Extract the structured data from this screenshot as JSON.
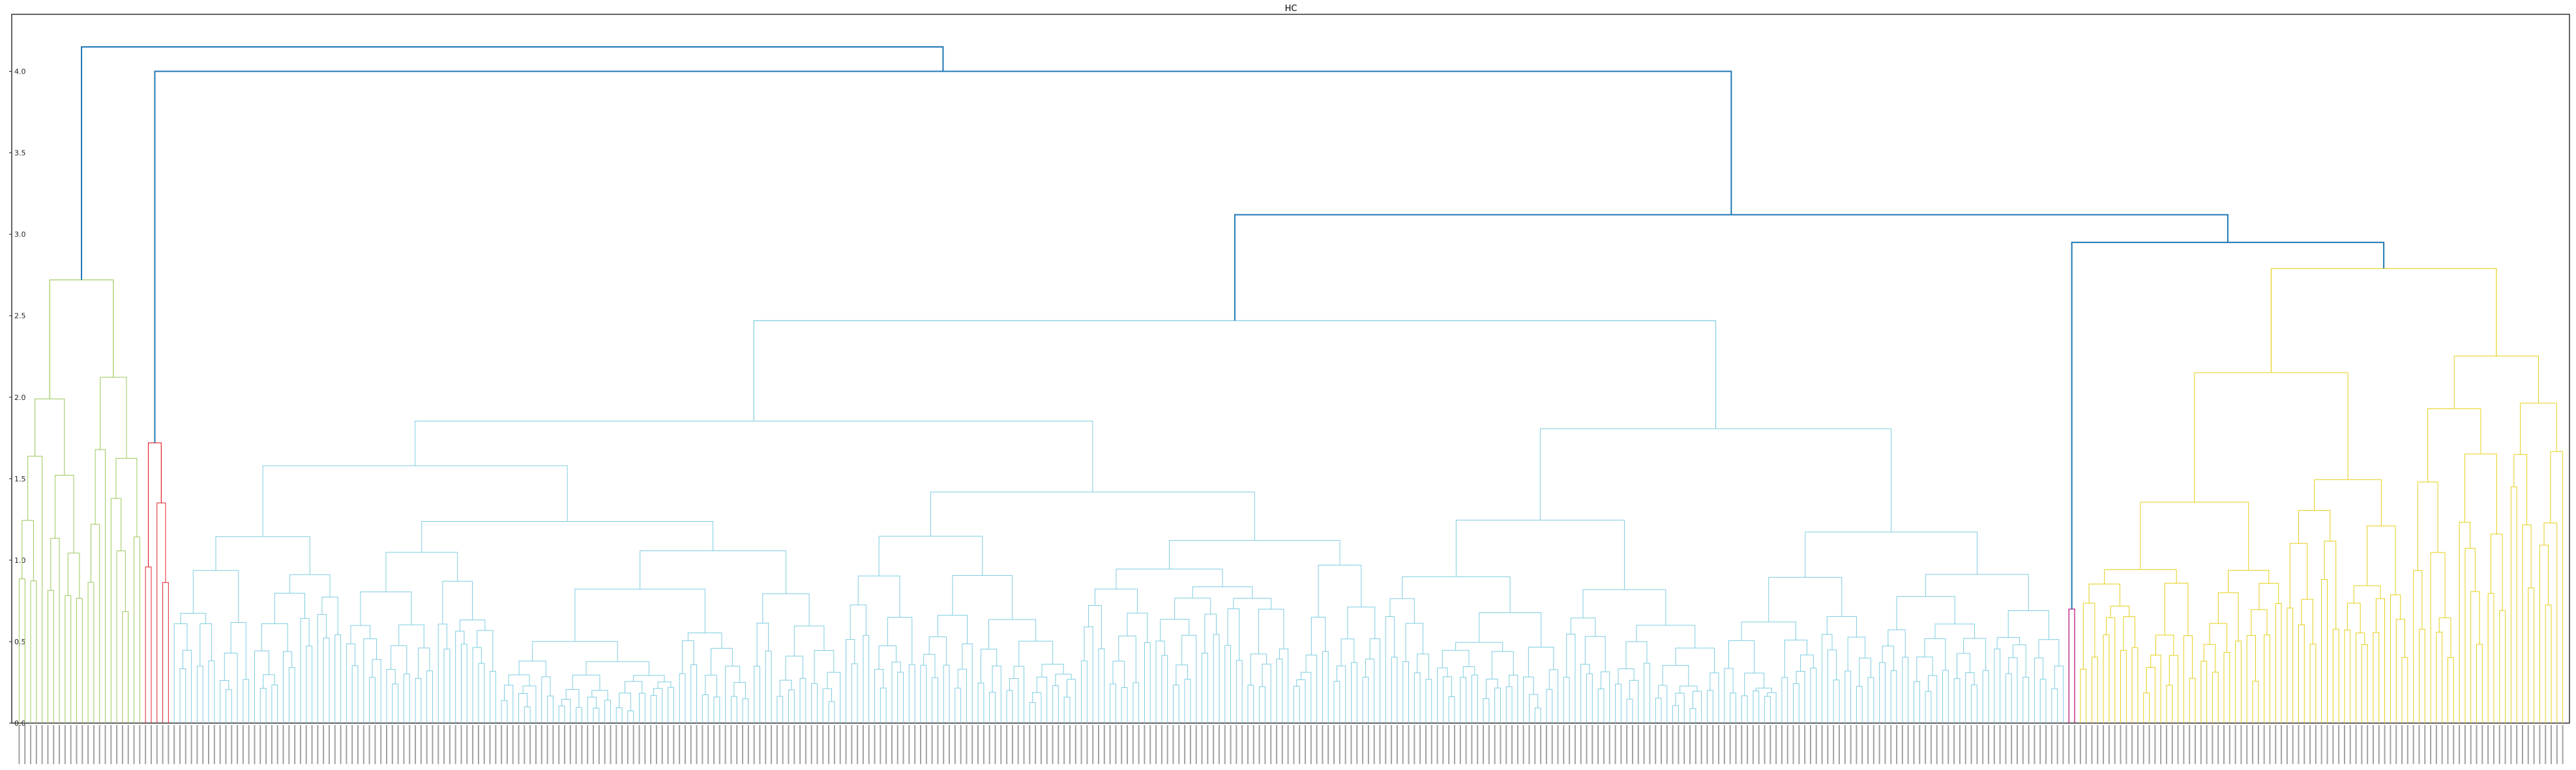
{
  "chart_data": {
    "type": "dendrogram",
    "title": "HC",
    "xlabel": "",
    "ylabel": "",
    "ylim": [
      0,
      4.35
    ],
    "yticks": [
      "0.0",
      "0.5",
      "1.0",
      "1.5",
      "2.0",
      "2.5",
      "3.0",
      "3.5",
      "4.0"
    ],
    "grid": false,
    "colors": {
      "top": "#1f77b4",
      "c1": "#9bc85a",
      "c2": "#e3222b",
      "c3": "#7fcde0",
      "c4": "#b5006f",
      "c5": "#e5cf1b"
    },
    "clusters": [
      {
        "name": "c1",
        "leaves": 22,
        "height": 2.72
      },
      {
        "name": "c2",
        "leaves": 5,
        "height": 1.72
      },
      {
        "name": "c3",
        "leaves": 330,
        "height": 2.47
      },
      {
        "name": "c4",
        "leaves": 2,
        "height": 0.7
      },
      {
        "name": "c5",
        "leaves": 85,
        "height": 2.79
      }
    ],
    "top_merges": [
      {
        "name": "link-c3-c4c5",
        "height": 3.12
      },
      {
        "name": "link-c4-c5",
        "height": 2.95
      },
      {
        "name": "link-c2-rest",
        "height": 4.0
      },
      {
        "name": "link-root",
        "height": 4.15
      }
    ]
  }
}
